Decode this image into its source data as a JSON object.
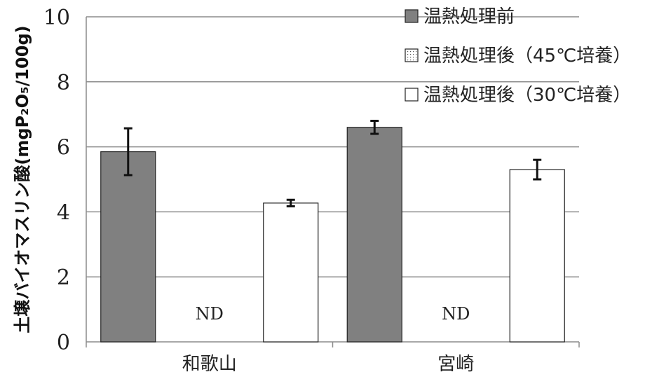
{
  "chart_data": {
    "type": "bar",
    "title": "",
    "xlabel": "",
    "ylabel": "土壌バイオマスリン酸(mgP₂O₅/100g)",
    "ylim": [
      0,
      10
    ],
    "yticks": [
      "0",
      "2",
      "4",
      "6",
      "8",
      "10"
    ],
    "categories": [
      "和歌山",
      "宮崎"
    ],
    "series": [
      {
        "name": "温熱処理前",
        "values": [
          5.85,
          6.6
        ],
        "errors": [
          0.72,
          0.2
        ],
        "color": "#808080",
        "pattern": "solid"
      },
      {
        "name": "温熱処理後（45℃培養）",
        "values": [
          null,
          null
        ],
        "value_labels": [
          "ND",
          "ND"
        ],
        "errors": [
          null,
          null
        ],
        "color": "#ffffff",
        "pattern": "dotted"
      },
      {
        "name": "温熱処理後（30℃培養）",
        "values": [
          4.27,
          5.3
        ],
        "errors": [
          0.1,
          0.3
        ],
        "color": "#ffffff",
        "pattern": "open"
      }
    ],
    "grid": true,
    "legend_position": "top-right"
  }
}
